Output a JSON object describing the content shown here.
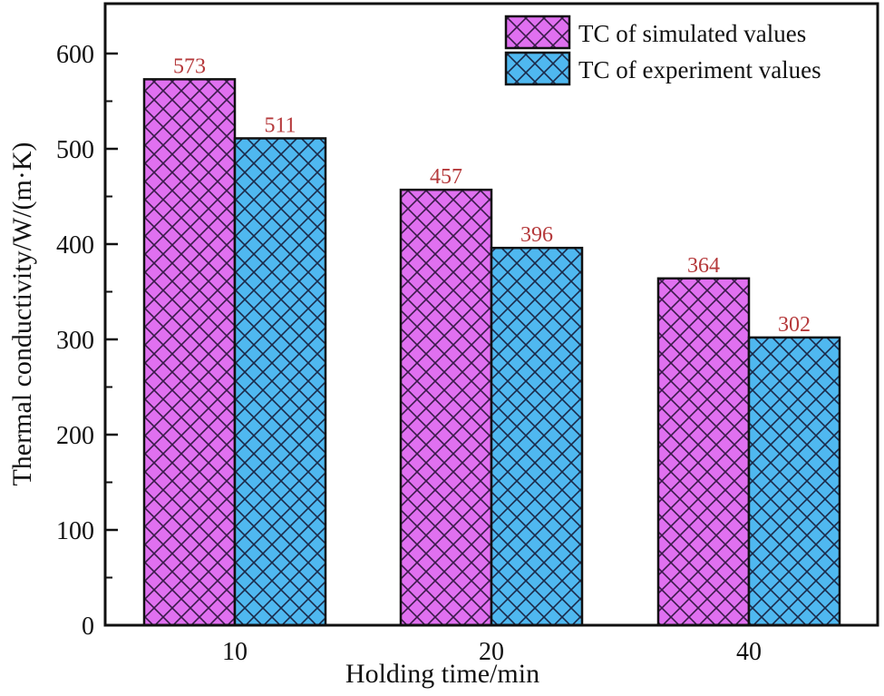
{
  "chart_data": {
    "type": "bar",
    "title": "",
    "xlabel": "Holding time/min",
    "ylabel": "Thermal conductivity/W/(m·K)",
    "categories": [
      "10",
      "20",
      "40"
    ],
    "series": [
      {
        "name": "TC of simulated values",
        "values": [
          573,
          457,
          364
        ],
        "color": "#e070f0",
        "hatch_color": "#3a1a4a"
      },
      {
        "name": "TC of experiment values",
        "values": [
          511,
          396,
          302
        ],
        "color": "#4fb8f0",
        "hatch_color": "#1a2a4a"
      }
    ],
    "ylim": [
      0,
      650
    ],
    "yticks": [
      0,
      100,
      200,
      300,
      400,
      500,
      600
    ],
    "minor_yticks": [
      50,
      150,
      250,
      350,
      450,
      550
    ],
    "grid": false,
    "legend_position": "upper right",
    "data_labels": true,
    "data_label_color": "#b5393b"
  }
}
